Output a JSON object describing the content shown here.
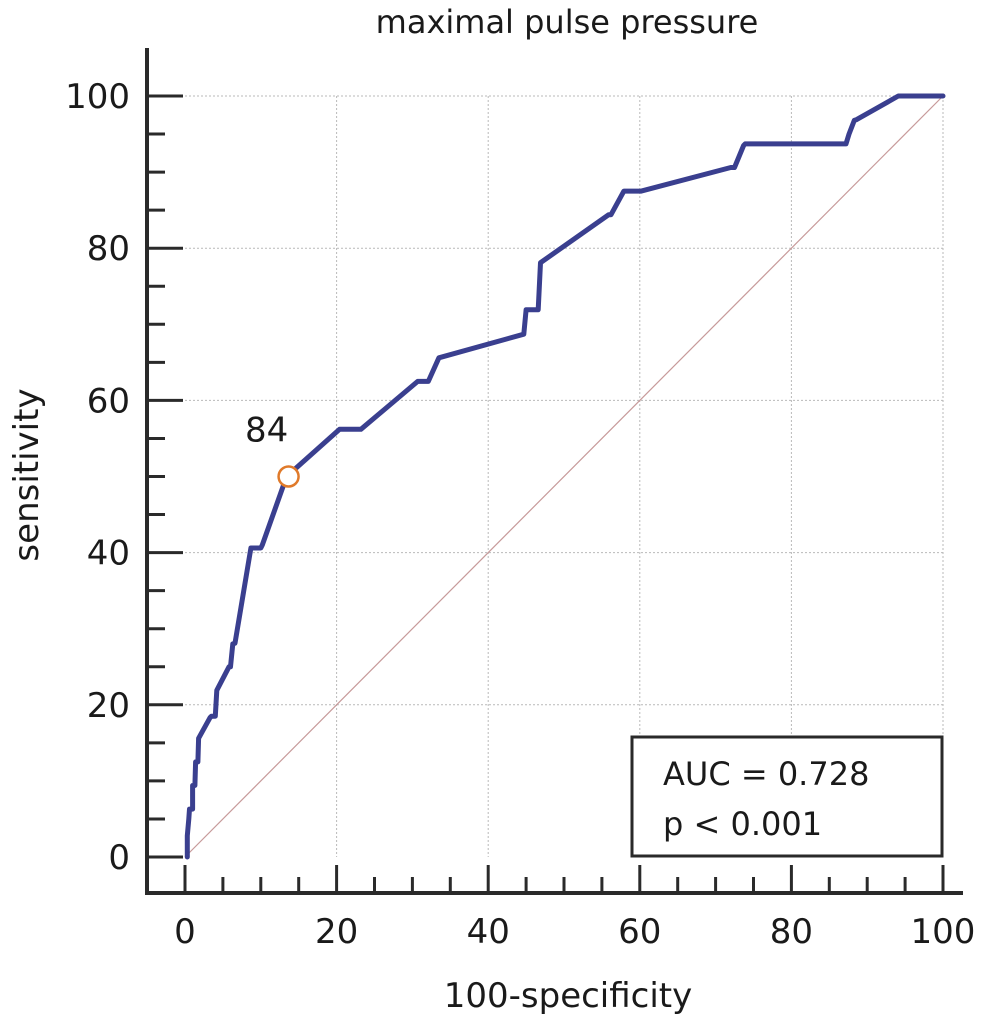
{
  "chart_data": {
    "type": "line",
    "title": "maximal pulse pressure",
    "xlabel": "100-specificity",
    "ylabel": "sensitivity",
    "xlim": [
      0,
      100
    ],
    "ylim": [
      0,
      100
    ],
    "xticks": [
      0,
      20,
      40,
      60,
      80,
      100
    ],
    "yticks": [
      0,
      20,
      40,
      60,
      80,
      100
    ],
    "xtick_labels": [
      "0",
      "20",
      "40",
      "60",
      "80",
      "100"
    ],
    "ytick_labels": [
      "0",
      "20",
      "40",
      "60",
      "80",
      "100"
    ],
    "grid": true,
    "series": [
      {
        "color": "#3a3f8f",
        "x": [
          0.3,
          0.3,
          0.5,
          0.6,
          1.0,
          1.0,
          1.3,
          1.4,
          1.7,
          1.8,
          3.3,
          3.5,
          4.0,
          4.2,
          5.8,
          6.0,
          6.3,
          6.6,
          8.7,
          9.0,
          10.0,
          10.2,
          13.4,
          20.4,
          23.2,
          30.7,
          32.1,
          33.5,
          44.7,
          45.0,
          46.6,
          46.9,
          55.9,
          56.2,
          57.9,
          60.2,
          72.0,
          72.5,
          73.7,
          73.9,
          87.2,
          87.6,
          88.3,
          88.6,
          94.1,
          100
        ],
        "y": [
          0,
          2.8,
          5.0,
          6.3,
          6.3,
          9.4,
          9.4,
          12.5,
          12.5,
          15.6,
          18.3,
          18.5,
          18.5,
          21.9,
          25.0,
          25.0,
          28.0,
          28.1,
          40.6,
          40.6,
          40.6,
          41.0,
          50.0,
          56.2,
          56.2,
          62.5,
          62.5,
          65.6,
          68.7,
          71.9,
          71.9,
          78.1,
          84.4,
          84.4,
          87.5,
          87.5,
          90.6,
          90.6,
          93.5,
          93.7,
          93.7,
          95.0,
          96.8,
          96.9,
          100,
          100
        ]
      },
      {
        "color": "#c79a9a",
        "x": [
          0,
          100
        ],
        "y": [
          0,
          100
        ]
      }
    ],
    "highlight_point": {
      "x": 13.4,
      "y": 50.0,
      "label": "84",
      "color": "#e07a2a"
    },
    "annotation": {
      "lines": [
        "AUC = 0.728",
        "p < 0.001"
      ],
      "position": "bottom-right"
    }
  }
}
